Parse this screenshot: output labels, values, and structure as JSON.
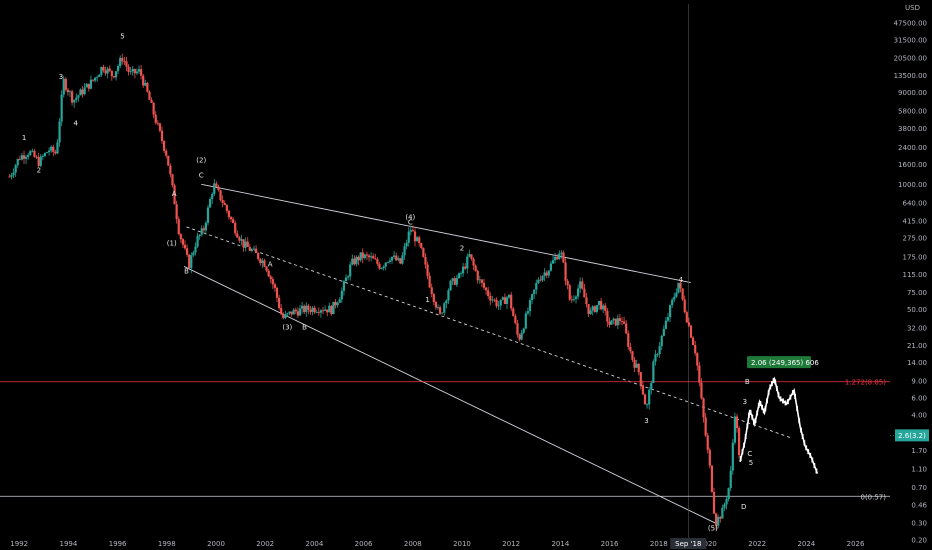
{
  "chart_data": {
    "type": "candlestick",
    "scale": "log",
    "currency": "USD",
    "colors": {
      "background": "#000000",
      "up": "#26a69a",
      "down": "#ef5350",
      "projection": "#ffffff",
      "trendline": "#d1d4dc",
      "fib_line": "#f23645",
      "price_line": "#26a69a",
      "badge_bg": "#1f7a3a",
      "axis_text": "#b2b5be"
    },
    "x_ticks": [
      "1992",
      "1994",
      "1996",
      "1998",
      "2000",
      "2002",
      "2004",
      "2006",
      "2008",
      "2010",
      "2012",
      "2014",
      "2016",
      "2018",
      "2020",
      "2022",
      "2024",
      "2026"
    ],
    "y_ticks": [
      "75000.00",
      "47500.00",
      "31500.00",
      "20500.00",
      "13500.00",
      "9000.00",
      "5800.00",
      "3800.00",
      "2400.00",
      "1600.00",
      "1000.00",
      "640.00",
      "415.00",
      "275.00",
      "175.00",
      "115.00",
      "75.00",
      "50.00",
      "32.00",
      "21.00",
      "14.00",
      "9.00",
      "6.00",
      "4.00",
      "2.60",
      "1.70",
      "1.10",
      "0.70",
      "0.46",
      "0.30",
      "0.20"
    ],
    "x_range": [
      1991.4,
      2027.5
    ],
    "y_range": [
      0.2,
      75000
    ],
    "price_path": [
      {
        "x": 1991.7,
        "y": 1200
      },
      {
        "x": 1992.1,
        "y": 1900
      },
      {
        "x": 1992.5,
        "y": 2200
      },
      {
        "x": 1992.9,
        "y": 1700
      },
      {
        "x": 1993.3,
        "y": 2300
      },
      {
        "x": 1993.6,
        "y": 2100
      },
      {
        "x": 1993.9,
        "y": 12000
      },
      {
        "x": 1994.3,
        "y": 7500
      },
      {
        "x": 1994.7,
        "y": 9500
      },
      {
        "x": 1995.1,
        "y": 12000
      },
      {
        "x": 1995.5,
        "y": 17000
      },
      {
        "x": 1995.9,
        "y": 13500
      },
      {
        "x": 1996.3,
        "y": 21000
      },
      {
        "x": 1996.6,
        "y": 14000
      },
      {
        "x": 1997.0,
        "y": 15000
      },
      {
        "x": 1997.3,
        "y": 9000
      },
      {
        "x": 1997.7,
        "y": 4200
      },
      {
        "x": 1998.1,
        "y": 2000
      },
      {
        "x": 1998.4,
        "y": 700
      },
      {
        "x": 1998.6,
        "y": 320
      },
      {
        "x": 1999.0,
        "y": 145
      },
      {
        "x": 1999.3,
        "y": 260
      },
      {
        "x": 1999.6,
        "y": 340
      },
      {
        "x": 2000.0,
        "y": 1000
      },
      {
        "x": 2000.4,
        "y": 640
      },
      {
        "x": 2000.8,
        "y": 380
      },
      {
        "x": 2001.2,
        "y": 240
      },
      {
        "x": 2001.6,
        "y": 200
      },
      {
        "x": 2002.1,
        "y": 150
      },
      {
        "x": 2002.5,
        "y": 80
      },
      {
        "x": 2002.8,
        "y": 40
      },
      {
        "x": 2003.2,
        "y": 47
      },
      {
        "x": 2003.7,
        "y": 50
      },
      {
        "x": 2004.3,
        "y": 52
      },
      {
        "x": 2004.8,
        "y": 50
      },
      {
        "x": 2005.2,
        "y": 75
      },
      {
        "x": 2005.6,
        "y": 150
      },
      {
        "x": 2006.0,
        "y": 180
      },
      {
        "x": 2006.4,
        "y": 170
      },
      {
        "x": 2006.8,
        "y": 140
      },
      {
        "x": 2007.2,
        "y": 180
      },
      {
        "x": 2007.6,
        "y": 150
      },
      {
        "x": 2008.0,
        "y": 350
      },
      {
        "x": 2008.4,
        "y": 220
      },
      {
        "x": 2008.8,
        "y": 90
      },
      {
        "x": 2009.2,
        "y": 42
      },
      {
        "x": 2009.6,
        "y": 90
      },
      {
        "x": 2010.0,
        "y": 110
      },
      {
        "x": 2010.4,
        "y": 180
      },
      {
        "x": 2010.8,
        "y": 100
      },
      {
        "x": 2011.2,
        "y": 70
      },
      {
        "x": 2011.6,
        "y": 55
      },
      {
        "x": 2012.0,
        "y": 70
      },
      {
        "x": 2012.4,
        "y": 24
      },
      {
        "x": 2012.8,
        "y": 50
      },
      {
        "x": 2013.2,
        "y": 105
      },
      {
        "x": 2013.6,
        "y": 130
      },
      {
        "x": 2014.1,
        "y": 210
      },
      {
        "x": 2014.5,
        "y": 60
      },
      {
        "x": 2014.9,
        "y": 90
      },
      {
        "x": 2015.3,
        "y": 45
      },
      {
        "x": 2015.7,
        "y": 60
      },
      {
        "x": 2016.1,
        "y": 35
      },
      {
        "x": 2016.6,
        "y": 40
      },
      {
        "x": 2017.0,
        "y": 16
      },
      {
        "x": 2017.3,
        "y": 11
      },
      {
        "x": 2017.6,
        "y": 4.5
      },
      {
        "x": 2017.9,
        "y": 14
      },
      {
        "x": 2018.3,
        "y": 30
      },
      {
        "x": 2018.6,
        "y": 55
      },
      {
        "x": 2018.9,
        "y": 95
      },
      {
        "x": 2019.2,
        "y": 45
      },
      {
        "x": 2019.6,
        "y": 18
      },
      {
        "x": 2019.9,
        "y": 4
      },
      {
        "x": 2020.2,
        "y": 1.0
      },
      {
        "x": 2020.4,
        "y": 0.3
      },
      {
        "x": 2020.7,
        "y": 0.4
      },
      {
        "x": 2021.0,
        "y": 0.8
      },
      {
        "x": 2021.2,
        "y": 4.5
      },
      {
        "x": 2021.4,
        "y": 1.3
      }
    ],
    "projection_path": [
      {
        "x": 2021.4,
        "y": 1.3
      },
      {
        "x": 2021.6,
        "y": 2.1
      },
      {
        "x": 2021.8,
        "y": 4.5
      },
      {
        "x": 2022.0,
        "y": 3.2
      },
      {
        "x": 2022.2,
        "y": 5.5
      },
      {
        "x": 2022.4,
        "y": 4.2
      },
      {
        "x": 2022.6,
        "y": 7.5
      },
      {
        "x": 2022.8,
        "y": 9.5
      },
      {
        "x": 2023.0,
        "y": 6.0
      },
      {
        "x": 2023.3,
        "y": 5.2
      },
      {
        "x": 2023.6,
        "y": 7.2
      },
      {
        "x": 2023.85,
        "y": 3.0
      },
      {
        "x": 2024.05,
        "y": 1.9
      },
      {
        "x": 2024.3,
        "y": 1.45
      },
      {
        "x": 2024.55,
        "y": 0.98
      }
    ],
    "trendlines": [
      {
        "from": {
          "x": 1999.5,
          "y": 1000
        },
        "to": {
          "x": 2019.4,
          "y": 95
        },
        "style": "solid"
      },
      {
        "from": {
          "x": 1998.8,
          "y": 140
        },
        "to": {
          "x": 2020.4,
          "y": 0.3
        },
        "style": "solid"
      },
      {
        "from": {
          "x": 1998.9,
          "y": 360
        },
        "to": {
          "x": 2023.5,
          "y": 2.3
        },
        "style": "dashed"
      }
    ],
    "horizontal_lines": [
      {
        "y": 8.85,
        "label": "1.272(8.85)",
        "color": "fib_line"
      },
      {
        "y": 0.57,
        "label": "0(0.57)",
        "color": "trendline"
      }
    ],
    "vertical_lines": [
      {
        "x": 2019.3
      }
    ],
    "wave_labels": [
      {
        "text": "1",
        "x": 1992.3,
        "y": 2900
      },
      {
        "text": "2",
        "x": 1992.9,
        "y": 1330
      },
      {
        "text": "3",
        "x": 1993.8,
        "y": 12500
      },
      {
        "text": "4",
        "x": 1994.4,
        "y": 4100
      },
      {
        "text": "5",
        "x": 1996.3,
        "y": 33000
      },
      {
        "text": "A",
        "x": 1998.4,
        "y": 760
      },
      {
        "text": "(1)",
        "x": 1998.3,
        "y": 230
      },
      {
        "text": "B",
        "x": 1998.9,
        "y": 118
      },
      {
        "text": "(2)",
        "x": 1999.5,
        "y": 1680
      },
      {
        "text": "C",
        "x": 1999.5,
        "y": 1170
      },
      {
        "text": "A",
        "x": 2002.3,
        "y": 140
      },
      {
        "text": "(3)",
        "x": 2003.0,
        "y": 31
      },
      {
        "text": "B",
        "x": 2003.7,
        "y": 31
      },
      {
        "text": "(4)",
        "x": 2008.0,
        "y": 430
      },
      {
        "text": "C",
        "x": 2008.0,
        "y": 380
      },
      {
        "text": "1",
        "x": 2008.7,
        "y": 60
      },
      {
        "text": "2",
        "x": 2010.1,
        "y": 205
      },
      {
        "text": "3",
        "x": 2017.6,
        "y": 3.3
      },
      {
        "text": "4",
        "x": 2019.0,
        "y": 96
      },
      {
        "text": "(5)",
        "x": 2020.3,
        "y": 0.25
      },
      {
        "text": "B",
        "x": 2021.7,
        "y": 8.4
      },
      {
        "text": "3",
        "x": 2021.6,
        "y": 5.2
      },
      {
        "text": "C",
        "x": 2021.8,
        "y": 1.5
      },
      {
        "text": "5",
        "x": 2021.85,
        "y": 1.2
      },
      {
        "text": "D",
        "x": 2021.55,
        "y": 0.42
      }
    ],
    "price_badge": {
      "text": "2.6(3.2)",
      "y": 2.45
    },
    "measure_badge": {
      "text": "2.06 (249,365) 606",
      "x": 2021.85,
      "y": 13.8
    },
    "date_badge": {
      "text": "Sep '18",
      "x": 2019.3
    }
  },
  "axis": {
    "currency_label": "USD"
  }
}
